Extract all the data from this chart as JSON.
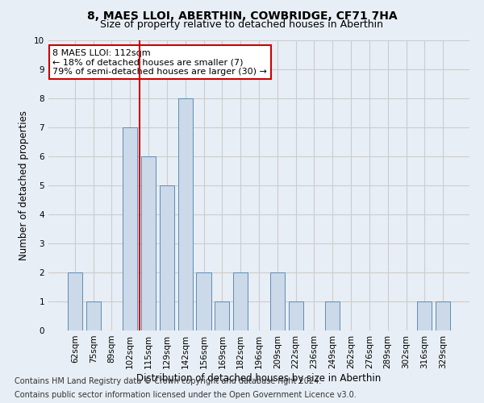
{
  "title1": "8, MAES LLOI, ABERTHIN, COWBRIDGE, CF71 7HA",
  "title2": "Size of property relative to detached houses in Aberthin",
  "xlabel": "Distribution of detached houses by size in Aberthin",
  "ylabel": "Number of detached properties",
  "footer1": "Contains HM Land Registry data © Crown copyright and database right 2024.",
  "footer2": "Contains public sector information licensed under the Open Government Licence v3.0.",
  "categories": [
    "62sqm",
    "75sqm",
    "89sqm",
    "102sqm",
    "115sqm",
    "129sqm",
    "142sqm",
    "156sqm",
    "169sqm",
    "182sqm",
    "196sqm",
    "209sqm",
    "222sqm",
    "236sqm",
    "249sqm",
    "262sqm",
    "276sqm",
    "289sqm",
    "302sqm",
    "316sqm",
    "329sqm"
  ],
  "values": [
    2,
    1,
    0,
    7,
    6,
    5,
    8,
    2,
    1,
    2,
    0,
    2,
    1,
    0,
    1,
    0,
    0,
    0,
    0,
    1,
    1
  ],
  "bar_color": "#ccd9e8",
  "bar_edge_color": "#5b8db8",
  "annotation_text": "8 MAES LLOI: 112sqm\n← 18% of detached houses are smaller (7)\n79% of semi-detached houses are larger (30) →",
  "annotation_box_color": "#ffffff",
  "annotation_box_edge_color": "#cc0000",
  "red_line_color": "#cc0000",
  "ylim": [
    0,
    10
  ],
  "yticks": [
    0,
    1,
    2,
    3,
    4,
    5,
    6,
    7,
    8,
    9,
    10
  ],
  "grid_color": "#cccccc",
  "bg_color": "#e8eef5",
  "plot_bg_color": "#e8eef5",
  "title1_fontsize": 10,
  "title2_fontsize": 9,
  "xlabel_fontsize": 8.5,
  "ylabel_fontsize": 8.5,
  "tick_fontsize": 7.5,
  "footer_fontsize": 7,
  "annotation_fontsize": 8
}
